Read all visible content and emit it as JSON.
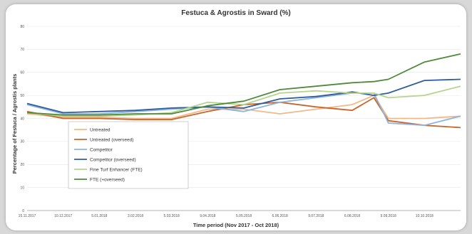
{
  "chart_data": {
    "type": "line",
    "title": "Festuca & Agrostis in Sward (%)",
    "ylabel": "Percentage of Festuca / Agrostis plants",
    "xlabel": "Time period (Nov 2017 - Oct 2018)",
    "ylim": [
      0,
      80
    ],
    "yticks": [
      0,
      10,
      20,
      30,
      40,
      50,
      60,
      70,
      80
    ],
    "grid": true,
    "legend_position": "lower-left",
    "x_labels": [
      "15.11.2017",
      "10.12.2017",
      "5.01.2018",
      "3.02.2018",
      "5.03.2018",
      "9.04.2018",
      "5.05.2018",
      "6.06.2018",
      "9.07.2018",
      "6.08.2018",
      "9.09.2018",
      "10.10.2018"
    ],
    "x": [
      0,
      1,
      2,
      3,
      4,
      5,
      6,
      7,
      8,
      9,
      9.6,
      10,
      11,
      12
    ],
    "series": [
      {
        "name": "Untreated",
        "color": "#f2b889",
        "values": [
          42,
          40.5,
          40.5,
          40,
          40,
          44,
          44,
          42,
          44,
          46,
          50,
          40,
          40,
          41
        ]
      },
      {
        "name": "Untreated (overseed)",
        "color": "#c8652a",
        "values": [
          43,
          40,
          40,
          39.5,
          39.5,
          43,
          46,
          47,
          45,
          43.5,
          49,
          39,
          37,
          36
        ]
      },
      {
        "name": "Competitor",
        "color": "#8eb4e2",
        "values": [
          46,
          42,
          42,
          43,
          44,
          45,
          43,
          47,
          49,
          51,
          51,
          38,
          37,
          41
        ]
      },
      {
        "name": "Competitor (overseed)",
        "color": "#2f5d9e",
        "values": [
          46.5,
          42.5,
          43,
          43.5,
          44.5,
          45,
          44.5,
          48.5,
          49.5,
          51.5,
          50,
          51,
          56.5,
          57
        ]
      },
      {
        "name": "Fine Turf Enhancer (FTE)",
        "color": "#b5d48f",
        "values": [
          42.5,
          41,
          41,
          41.5,
          42.5,
          47,
          46,
          51,
          52,
          51,
          51,
          49,
          50,
          54
        ]
      },
      {
        "name": "FTE (+overseed)",
        "color": "#4f8a3a",
        "values": [
          42.5,
          41.5,
          41.5,
          42,
          42,
          45.5,
          47.5,
          52.5,
          54,
          55.5,
          56,
          57,
          64.5,
          68
        ]
      }
    ]
  }
}
